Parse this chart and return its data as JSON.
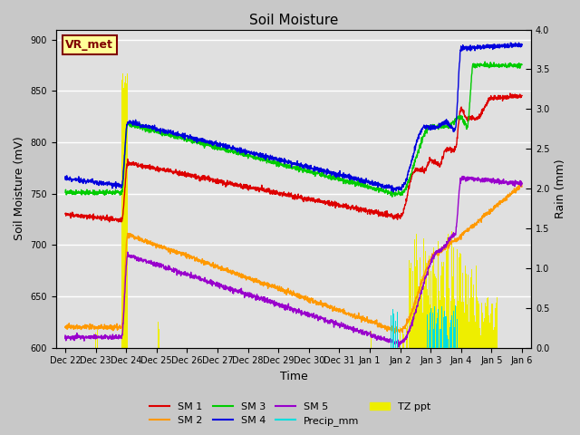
{
  "title": "Soil Moisture",
  "xlabel": "Time",
  "ylabel_left": "Soil Moisture (mV)",
  "ylabel_right": "Rain (mm)",
  "ylim_left": [
    600,
    910
  ],
  "ylim_right": [
    0.0,
    4.0
  ],
  "fig_bg_color": "#c8c8c8",
  "plot_bg_color": "#e0e0e0",
  "annotation_text": "VR_met",
  "annotation_box_color": "#ffff99",
  "annotation_text_color": "#800000",
  "x_ticks_labels": [
    "Dec 22",
    "Dec 23",
    "Dec 24",
    "Dec 25",
    "Dec 26",
    "Dec 27",
    "Dec 28",
    "Dec 29",
    "Dec 30",
    "Dec 31",
    "Jan 1",
    "Jan 2",
    "Jan 3",
    "Jan 4",
    "Jan 5",
    "Jan 6"
  ],
  "colors": {
    "SM1": "#dd0000",
    "SM2": "#ff9900",
    "SM3": "#00cc00",
    "SM4": "#0000dd",
    "SM5": "#9900cc",
    "Precip_mm": "#00dddd",
    "TZ_ppt": "#eeee00"
  },
  "grid_color": "#ffffff",
  "tick_label_fontsize": 7,
  "axis_label_fontsize": 9,
  "title_fontsize": 11
}
